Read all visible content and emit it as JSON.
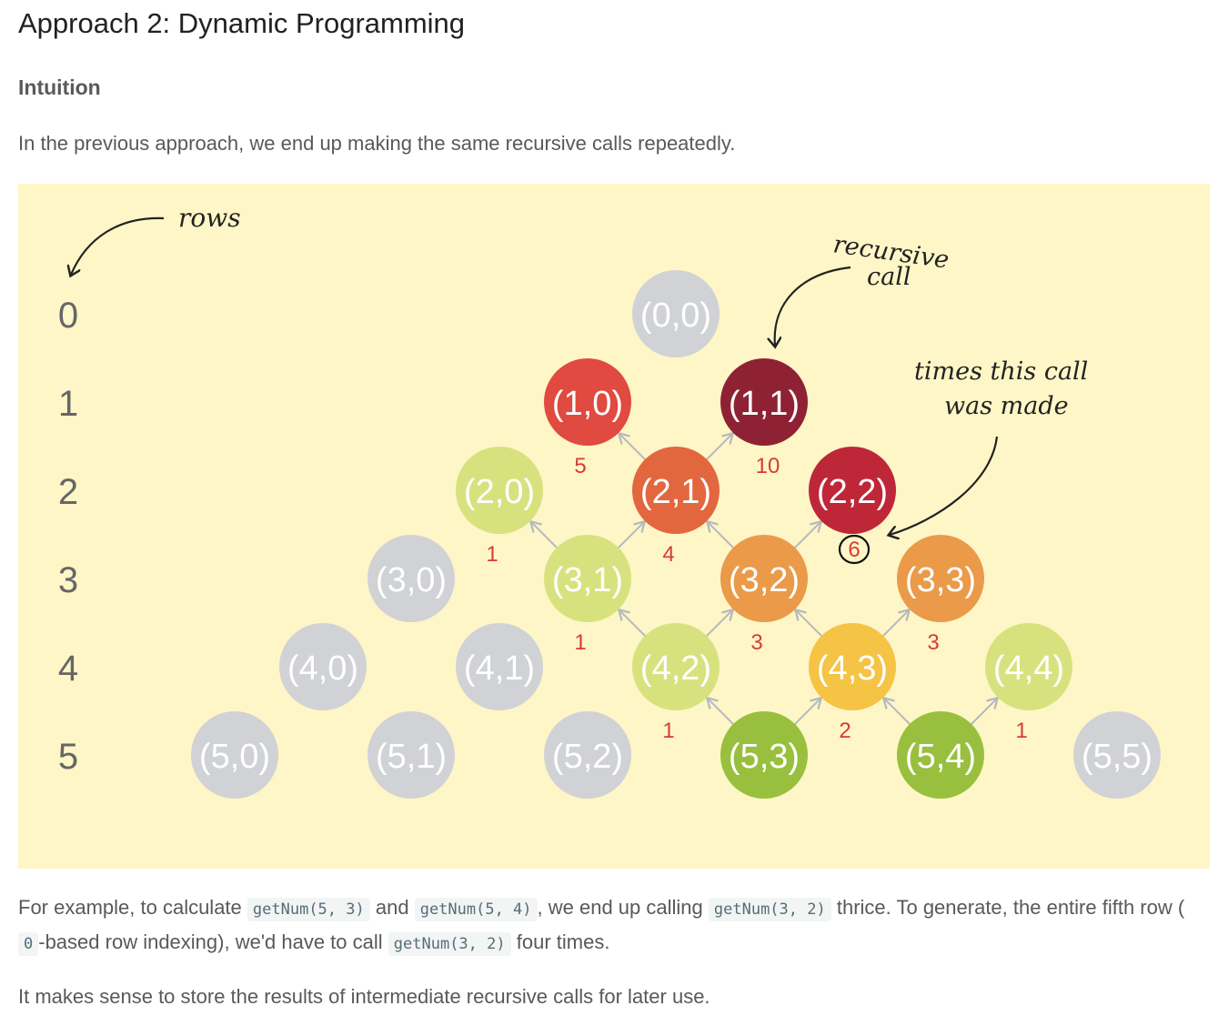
{
  "title": "Approach 2: Dynamic Programming",
  "subheading": "Intuition",
  "intro": "In the previous approach, we end up making the same recursive calls repeatedly.",
  "figure": {
    "rows_label": "rows",
    "recursive_label": [
      "recursive",
      "call"
    ],
    "times_label": [
      "times this call",
      "was made"
    ],
    "row_numbers": [
      "0",
      "1",
      "2",
      "3",
      "4",
      "5"
    ],
    "nodes": [
      {
        "label": "(0,0)",
        "row": 0,
        "k": 0,
        "color": "#d0d2d6"
      },
      {
        "label": "(1,0)",
        "row": 1,
        "k": 0,
        "color": "#e04a40",
        "count": "5"
      },
      {
        "label": "(1,1)",
        "row": 1,
        "k": 1,
        "color": "#8e2234",
        "count": "10"
      },
      {
        "label": "(2,0)",
        "row": 2,
        "k": 0,
        "color": "#d7e27f",
        "count": "1"
      },
      {
        "label": "(2,1)",
        "row": 2,
        "k": 1,
        "color": "#e2673e",
        "count": "4"
      },
      {
        "label": "(2,2)",
        "row": 2,
        "k": 2,
        "color": "#be2738",
        "count": "6"
      },
      {
        "label": "(3,0)",
        "row": 3,
        "k": 0,
        "color": "#d0d2d6"
      },
      {
        "label": "(3,1)",
        "row": 3,
        "k": 1,
        "color": "#d7e27f",
        "count": "1"
      },
      {
        "label": "(3,2)",
        "row": 3,
        "k": 2,
        "color": "#ea9a49",
        "count": "3"
      },
      {
        "label": "(3,3)",
        "row": 3,
        "k": 3,
        "color": "#ea9a49",
        "count": "3"
      },
      {
        "label": "(4,0)",
        "row": 4,
        "k": 0,
        "color": "#d0d2d6"
      },
      {
        "label": "(4,1)",
        "row": 4,
        "k": 1,
        "color": "#d0d2d6"
      },
      {
        "label": "(4,2)",
        "row": 4,
        "k": 2,
        "color": "#d7e27f",
        "count": "1"
      },
      {
        "label": "(4,3)",
        "row": 4,
        "k": 3,
        "color": "#f5c445",
        "count": "2"
      },
      {
        "label": "(4,4)",
        "row": 4,
        "k": 4,
        "color": "#d7e27f",
        "count": "1"
      },
      {
        "label": "(5,0)",
        "row": 5,
        "k": 0,
        "color": "#d0d2d6"
      },
      {
        "label": "(5,1)",
        "row": 5,
        "k": 1,
        "color": "#d0d2d6"
      },
      {
        "label": "(5,2)",
        "row": 5,
        "k": 2,
        "color": "#d0d2d6"
      },
      {
        "label": "(5,3)",
        "row": 5,
        "k": 3,
        "color": "#98c03e"
      },
      {
        "label": "(5,4)",
        "row": 5,
        "k": 4,
        "color": "#98c03e"
      },
      {
        "label": "(5,5)",
        "row": 5,
        "k": 5,
        "color": "#d0d2d6"
      }
    ],
    "edges": [
      [
        "(5,3)",
        "(4,2)"
      ],
      [
        "(5,3)",
        "(4,3)"
      ],
      [
        "(5,4)",
        "(4,3)"
      ],
      [
        "(5,4)",
        "(4,4)"
      ],
      [
        "(4,2)",
        "(3,1)"
      ],
      [
        "(4,2)",
        "(3,2)"
      ],
      [
        "(4,3)",
        "(3,2)"
      ],
      [
        "(4,3)",
        "(3,3)"
      ],
      [
        "(3,1)",
        "(2,0)"
      ],
      [
        "(3,1)",
        "(2,1)"
      ],
      [
        "(3,2)",
        "(2,1)"
      ],
      [
        "(3,2)",
        "(2,2)"
      ],
      [
        "(2,1)",
        "(1,0)"
      ],
      [
        "(2,1)",
        "(1,1)"
      ]
    ]
  },
  "example": {
    "t1": "For example, to calculate",
    "c1": "getNum(5, 3)",
    "t2": "and",
    "c2": "getNum(5, 4)",
    "t3": ", we end up calling",
    "c3": "getNum(3, 2)",
    "t4": "thrice. To generate, the entire fifth row (",
    "c4": "0",
    "t5": "-based row indexing), we'd have to call",
    "c5": "getNum(3, 2)",
    "t6": "four times."
  },
  "conclusion": "It makes sense to store the results of intermediate recursive calls for later use."
}
